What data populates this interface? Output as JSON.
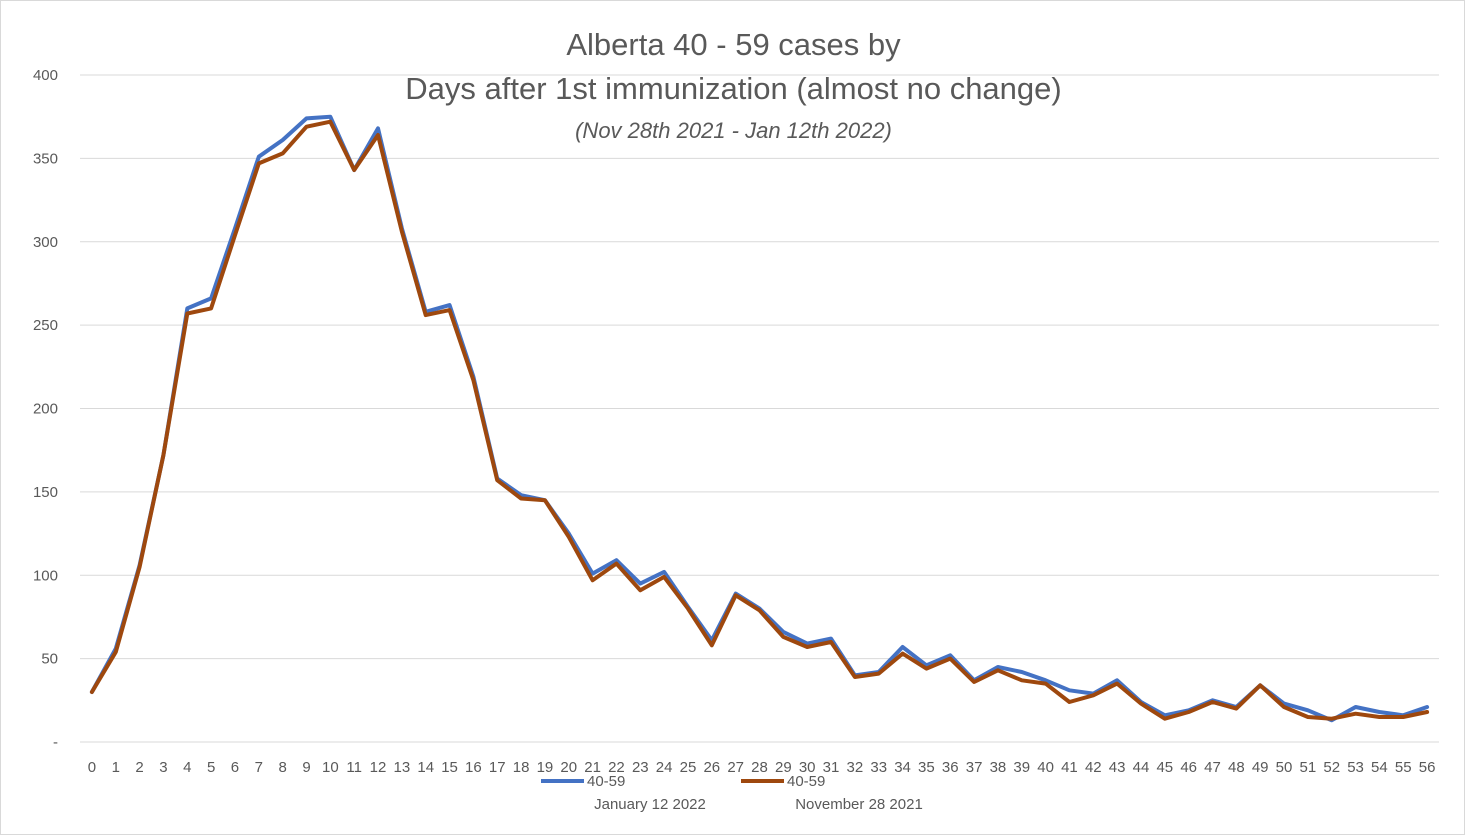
{
  "chart_data": {
    "type": "line",
    "title_line1": "Alberta 40 - 59 cases by",
    "title_line2": "Days after 1st immunization (almost no change)",
    "subtitle": "(Nov 28th 2021 - Jan 12th 2022)",
    "xlabel": "",
    "ylabel": "",
    "ylim": [
      0,
      400
    ],
    "y_ticks": [
      "-",
      "50",
      "100",
      "150",
      "200",
      "250",
      "300",
      "350",
      "400"
    ],
    "y_tick_values": [
      0,
      50,
      100,
      150,
      200,
      250,
      300,
      350,
      400
    ],
    "x": [
      0,
      1,
      2,
      3,
      4,
      5,
      6,
      7,
      8,
      9,
      10,
      11,
      12,
      13,
      14,
      15,
      16,
      17,
      18,
      19,
      20,
      21,
      22,
      23,
      24,
      25,
      26,
      27,
      28,
      29,
      30,
      31,
      32,
      33,
      34,
      35,
      36,
      37,
      38,
      39,
      40,
      41,
      42,
      43,
      44,
      45,
      46,
      47,
      48,
      49,
      50,
      51,
      52,
      53,
      54,
      55,
      56
    ],
    "grid": true,
    "legend_position": "bottom",
    "series": [
      {
        "name": "40-59",
        "sublabel": "January 12 2022",
        "color": "#4472c4",
        "values": [
          30,
          56,
          106,
          172,
          260,
          266,
          308,
          351,
          361,
          374,
          375,
          343,
          368,
          308,
          258,
          262,
          219,
          158,
          148,
          145,
          125,
          101,
          109,
          95,
          102,
          81,
          61,
          89,
          80,
          66,
          59,
          62,
          40,
          42,
          57,
          46,
          52,
          37,
          45,
          42,
          37,
          31,
          29,
          37,
          24,
          16,
          19,
          25,
          21,
          34,
          23,
          19,
          13,
          21,
          18,
          16,
          21
        ]
      },
      {
        "name": "40-59",
        "sublabel": "November 28 2021",
        "color": "#9e480e",
        "values": [
          30,
          54,
          105,
          172,
          257,
          260,
          304,
          347,
          353,
          369,
          372,
          343,
          364,
          306,
          256,
          259,
          217,
          157,
          146,
          145,
          123,
          97,
          107,
          91,
          99,
          80,
          58,
          88,
          79,
          63,
          57,
          60,
          39,
          41,
          53,
          44,
          50,
          36,
          43,
          37,
          35,
          24,
          28,
          35,
          23,
          14,
          18,
          24,
          20,
          34,
          21,
          15,
          14,
          17,
          15,
          15,
          18
        ]
      }
    ]
  }
}
